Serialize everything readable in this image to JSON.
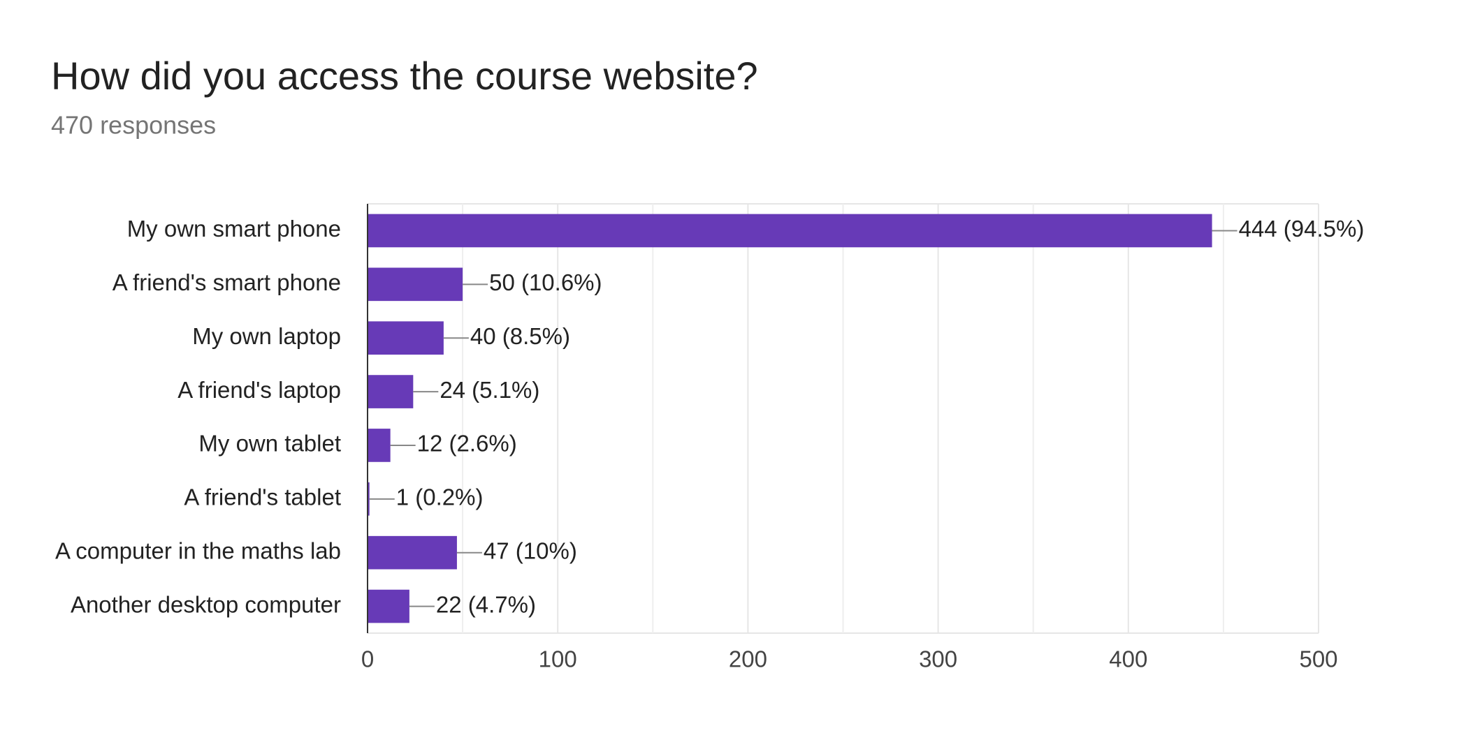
{
  "chart_data": {
    "type": "hbar",
    "title": "How did you access the course website?",
    "subtitle": "470 responses",
    "categories": [
      "My own smart phone",
      "A friend's smart phone",
      "My own laptop",
      "A friend's laptop",
      "My own tablet",
      "A friend's tablet",
      "A computer in the maths lab",
      "Another desktop computer"
    ],
    "values": [
      444,
      50,
      40,
      24,
      12,
      1,
      47,
      22
    ],
    "value_labels": [
      "444 (94.5%)",
      "50 (10.6%)",
      "40 (8.5%)",
      "24 (5.1%)",
      "12 (2.6%)",
      "1 (0.2%)",
      "47 (10%)",
      "22 (4.7%)"
    ],
    "color": "#673ab7",
    "xlim": [
      0,
      500
    ],
    "xticks": [
      0,
      100,
      200,
      300,
      400,
      500
    ],
    "minor_xticks": [
      50,
      150,
      250,
      350,
      450
    ],
    "grid": true
  }
}
